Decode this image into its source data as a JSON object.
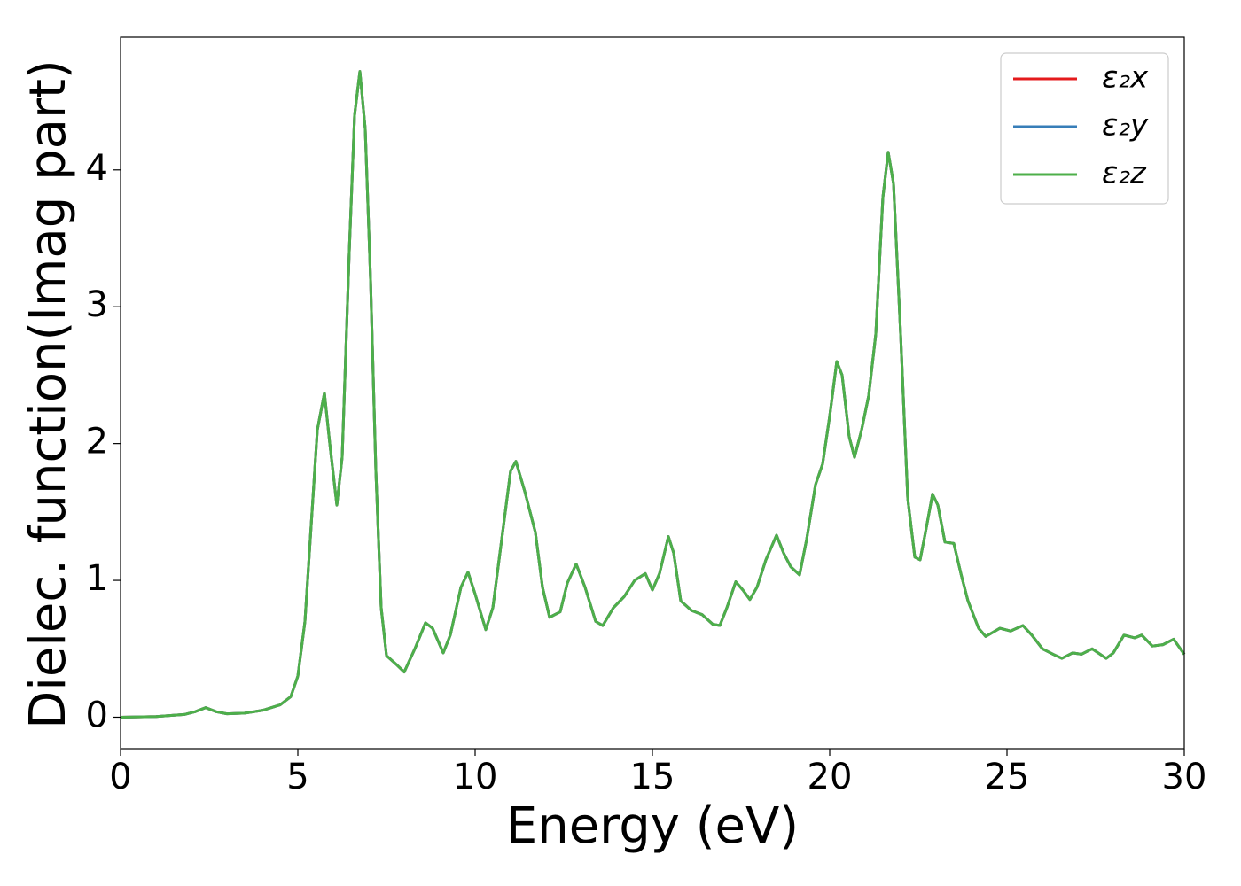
{
  "chart_data": {
    "type": "line",
    "xlabel": "Energy (eV)",
    "ylabel": "Dielec. function(Imag part)",
    "x": [
      0,
      1,
      1.8,
      2.1,
      2.4,
      2.7,
      3.0,
      3.5,
      4.0,
      4.5,
      4.8,
      5.0,
      5.2,
      5.4,
      5.55,
      5.75,
      5.9,
      6.1,
      6.25,
      6.45,
      6.6,
      6.75,
      6.9,
      7.05,
      7.2,
      7.35,
      7.5,
      7.8,
      8.0,
      8.3,
      8.6,
      8.8,
      9.1,
      9.3,
      9.6,
      9.8,
      10.0,
      10.3,
      10.5,
      10.8,
      11.0,
      11.15,
      11.4,
      11.7,
      11.9,
      12.1,
      12.4,
      12.6,
      12.85,
      13.1,
      13.4,
      13.6,
      13.9,
      14.2,
      14.5,
      14.8,
      15.0,
      15.2,
      15.45,
      15.6,
      15.8,
      16.1,
      16.4,
      16.7,
      16.9,
      17.1,
      17.35,
      17.55,
      17.75,
      17.95,
      18.2,
      18.5,
      18.7,
      18.9,
      19.15,
      19.35,
      19.6,
      19.8,
      20.0,
      20.2,
      20.35,
      20.55,
      20.7,
      20.9,
      21.1,
      21.3,
      21.5,
      21.65,
      21.8,
      22.0,
      22.2,
      22.4,
      22.55,
      22.7,
      22.9,
      23.05,
      23.25,
      23.5,
      23.7,
      23.9,
      24.2,
      24.4,
      24.8,
      25.1,
      25.45,
      25.7,
      26.0,
      26.3,
      26.55,
      26.85,
      27.1,
      27.4,
      27.8,
      28.0,
      28.3,
      28.6,
      28.8,
      29.1,
      29.4,
      29.7,
      30.0
    ],
    "series": [
      {
        "name": "ε₂x",
        "color": "#e41a1c",
        "values": [
          0,
          0.005,
          0.02,
          0.04,
          0.07,
          0.04,
          0.025,
          0.03,
          0.05,
          0.09,
          0.15,
          0.3,
          0.7,
          1.5,
          2.1,
          2.37,
          2.0,
          1.55,
          1.9,
          3.4,
          4.4,
          4.72,
          4.3,
          3.2,
          1.8,
          0.8,
          0.45,
          0.38,
          0.33,
          0.5,
          0.69,
          0.65,
          0.47,
          0.6,
          0.95,
          1.06,
          0.9,
          0.64,
          0.8,
          1.4,
          1.8,
          1.87,
          1.65,
          1.35,
          0.95,
          0.73,
          0.77,
          0.98,
          1.12,
          0.95,
          0.7,
          0.67,
          0.8,
          0.88,
          1.0,
          1.05,
          0.93,
          1.05,
          1.32,
          1.2,
          0.85,
          0.78,
          0.75,
          0.68,
          0.67,
          0.8,
          0.99,
          0.93,
          0.86,
          0.95,
          1.15,
          1.33,
          1.2,
          1.1,
          1.04,
          1.3,
          1.7,
          1.85,
          2.2,
          2.6,
          2.5,
          2.05,
          1.9,
          2.1,
          2.35,
          2.8,
          3.8,
          4.13,
          3.9,
          2.8,
          1.6,
          1.17,
          1.15,
          1.35,
          1.63,
          1.55,
          1.28,
          1.27,
          1.05,
          0.85,
          0.65,
          0.59,
          0.65,
          0.63,
          0.67,
          0.6,
          0.5,
          0.46,
          0.43,
          0.47,
          0.46,
          0.5,
          0.43,
          0.47,
          0.6,
          0.58,
          0.6,
          0.52,
          0.53,
          0.57,
          0.46
        ]
      },
      {
        "name": "ε₂y",
        "color": "#377eb8",
        "values": [
          0,
          0.005,
          0.02,
          0.04,
          0.07,
          0.04,
          0.025,
          0.03,
          0.05,
          0.09,
          0.15,
          0.3,
          0.7,
          1.5,
          2.1,
          2.37,
          2.0,
          1.55,
          1.9,
          3.4,
          4.4,
          4.72,
          4.3,
          3.2,
          1.8,
          0.8,
          0.45,
          0.38,
          0.33,
          0.5,
          0.69,
          0.65,
          0.47,
          0.6,
          0.95,
          1.06,
          0.9,
          0.64,
          0.8,
          1.4,
          1.8,
          1.87,
          1.65,
          1.35,
          0.95,
          0.73,
          0.77,
          0.98,
          1.12,
          0.95,
          0.7,
          0.67,
          0.8,
          0.88,
          1.0,
          1.05,
          0.93,
          1.05,
          1.32,
          1.2,
          0.85,
          0.78,
          0.75,
          0.68,
          0.67,
          0.8,
          0.99,
          0.93,
          0.86,
          0.95,
          1.15,
          1.33,
          1.2,
          1.1,
          1.04,
          1.3,
          1.7,
          1.85,
          2.2,
          2.6,
          2.5,
          2.05,
          1.9,
          2.1,
          2.35,
          2.8,
          3.8,
          4.13,
          3.9,
          2.8,
          1.6,
          1.17,
          1.15,
          1.35,
          1.63,
          1.55,
          1.28,
          1.27,
          1.05,
          0.85,
          0.65,
          0.59,
          0.65,
          0.63,
          0.67,
          0.6,
          0.5,
          0.46,
          0.43,
          0.47,
          0.46,
          0.5,
          0.43,
          0.47,
          0.6,
          0.58,
          0.6,
          0.52,
          0.53,
          0.57,
          0.46
        ]
      },
      {
        "name": "ε₂z",
        "color": "#4daf4a",
        "values": [
          0,
          0.005,
          0.02,
          0.04,
          0.07,
          0.04,
          0.025,
          0.03,
          0.05,
          0.09,
          0.15,
          0.3,
          0.7,
          1.5,
          2.1,
          2.37,
          2.0,
          1.55,
          1.9,
          3.4,
          4.4,
          4.72,
          4.3,
          3.2,
          1.8,
          0.8,
          0.45,
          0.38,
          0.33,
          0.5,
          0.69,
          0.65,
          0.47,
          0.6,
          0.95,
          1.06,
          0.9,
          0.64,
          0.8,
          1.4,
          1.8,
          1.87,
          1.65,
          1.35,
          0.95,
          0.73,
          0.77,
          0.98,
          1.12,
          0.95,
          0.7,
          0.67,
          0.8,
          0.88,
          1.0,
          1.05,
          0.93,
          1.05,
          1.32,
          1.2,
          0.85,
          0.78,
          0.75,
          0.68,
          0.67,
          0.8,
          0.99,
          0.93,
          0.86,
          0.95,
          1.15,
          1.33,
          1.2,
          1.1,
          1.04,
          1.3,
          1.7,
          1.85,
          2.2,
          2.6,
          2.5,
          2.05,
          1.9,
          2.1,
          2.35,
          2.8,
          3.8,
          4.13,
          3.9,
          2.8,
          1.6,
          1.17,
          1.15,
          1.35,
          1.63,
          1.55,
          1.28,
          1.27,
          1.05,
          0.85,
          0.65,
          0.59,
          0.65,
          0.63,
          0.67,
          0.6,
          0.5,
          0.46,
          0.43,
          0.47,
          0.46,
          0.5,
          0.43,
          0.47,
          0.6,
          0.58,
          0.6,
          0.52,
          0.53,
          0.57,
          0.46
        ]
      }
    ],
    "xlim": [
      0,
      30
    ],
    "xticks": [
      0,
      5,
      10,
      15,
      20,
      25,
      30
    ],
    "ylim": [
      -0.23,
      4.97
    ],
    "yticks": [
      0,
      1,
      2,
      3,
      4
    ],
    "legend": "upper right"
  }
}
